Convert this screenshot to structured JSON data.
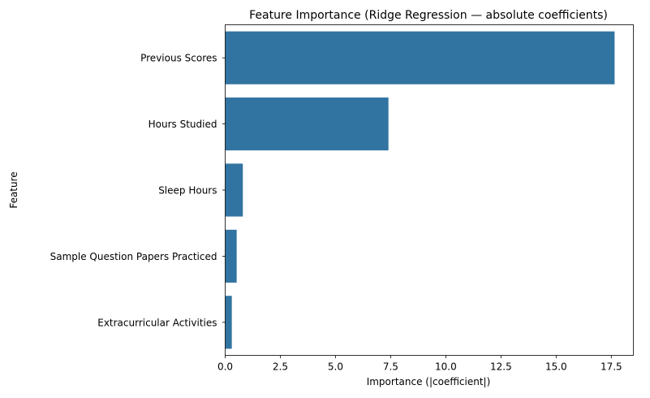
{
  "chart_data": {
    "type": "bar",
    "orientation": "horizontal",
    "title": "Feature Importance (Ridge Regression — absolute coefficients)",
    "xlabel": "Importance (|coefficient|)",
    "ylabel": "Feature",
    "categories": [
      "Previous Scores",
      "Hours Studied",
      "Sleep Hours",
      "Sample Question Papers Practiced",
      "Extracurricular Activities"
    ],
    "values": [
      17.65,
      7.4,
      0.8,
      0.52,
      0.3
    ],
    "xlim": [
      0,
      18.5
    ],
    "xticks": [
      0.0,
      2.5,
      5.0,
      7.5,
      10.0,
      12.5,
      15.0,
      17.5
    ],
    "xtick_labels": [
      "0.0",
      "2.5",
      "5.0",
      "7.5",
      "10.0",
      "12.5",
      "15.0",
      "17.5"
    ],
    "bar_color": "#3274a1",
    "grid": false,
    "legend": "none"
  }
}
